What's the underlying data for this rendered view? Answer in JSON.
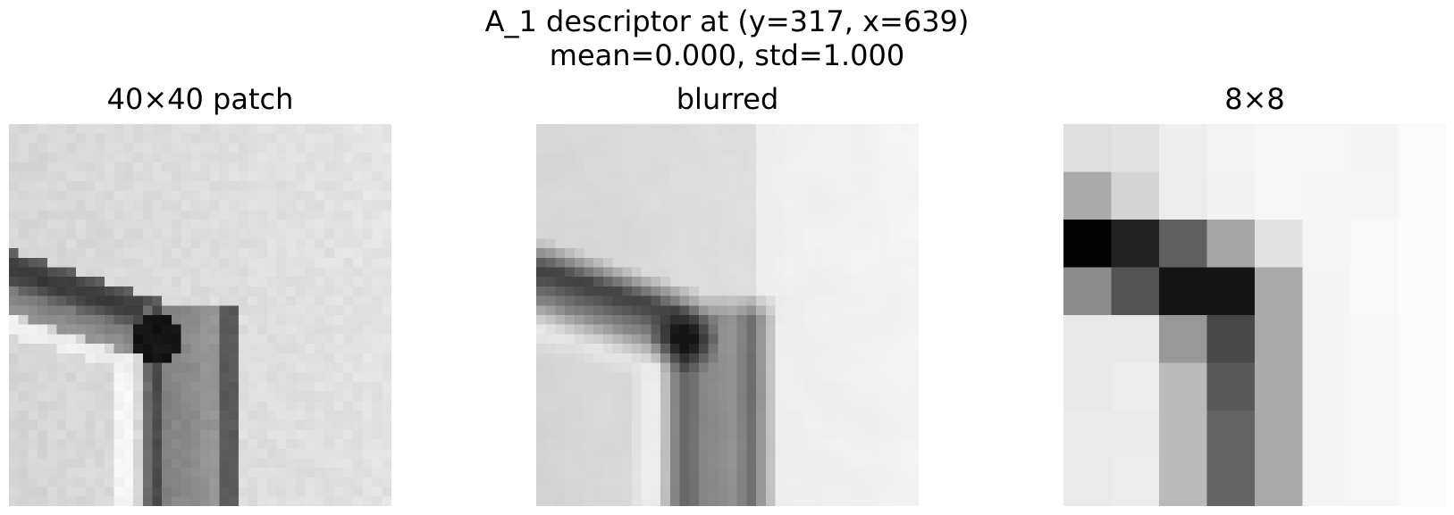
{
  "figure": {
    "title_line1": "A_1 descriptor at (y=317, x=639)",
    "title_line2": "mean=0.000, std=1.000"
  },
  "panels": [
    {
      "title": "40×40 patch",
      "kind": "patch"
    },
    {
      "title": "blurred",
      "kind": "blurred"
    },
    {
      "title": "8×8",
      "kind": "grid"
    }
  ],
  "descriptor_8x8_gray": [
    [
      222,
      226,
      238,
      243,
      246,
      246,
      244,
      250
    ],
    [
      170,
      212,
      236,
      242,
      246,
      245,
      245,
      251
    ],
    [
      2,
      34,
      96,
      165,
      226,
      245,
      248,
      252
    ],
    [
      140,
      84,
      20,
      22,
      170,
      244,
      248,
      252
    ],
    [
      232,
      232,
      152,
      72,
      170,
      244,
      246,
      251
    ],
    [
      232,
      236,
      186,
      88,
      170,
      244,
      246,
      251
    ],
    [
      234,
      234,
      186,
      100,
      170,
      244,
      246,
      251
    ],
    [
      234,
      236,
      186,
      100,
      170,
      244,
      246,
      252
    ]
  ],
  "colormap": "gray"
}
